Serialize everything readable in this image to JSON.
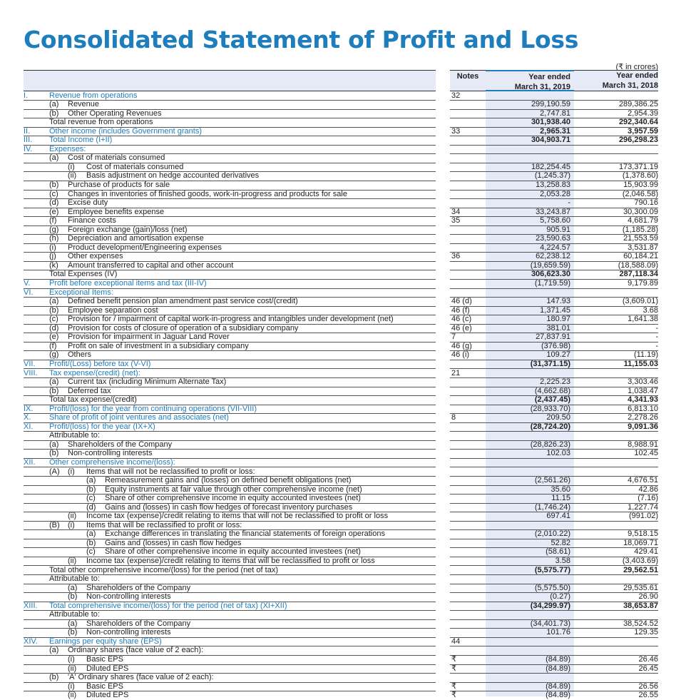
{
  "page": {
    "title": "Consolidated Statement of Profit and Loss",
    "unit": "(₹ in crores)"
  },
  "header": {
    "notes": "Notes",
    "col1_line1": "Year ended",
    "col1_line2": "March 31, 2019",
    "col2_line1": "Year ended",
    "col2_line2": "March 31, 2018"
  },
  "colors": {
    "accent": "#1d7dbd",
    "highlight": "#e6eaf6"
  },
  "rows": [
    {
      "rn": "I.",
      "mk": "",
      "mk2": "",
      "label": "Revenue from operations",
      "note": "32",
      "v19": "",
      "v18": "",
      "sec": true,
      "bold": false,
      "ind": 0
    },
    {
      "rn": "",
      "mk": "(a)",
      "mk2": "",
      "label": "Revenue",
      "note": "",
      "v19": "299,190.59",
      "v18": "289,386.25",
      "sec": false,
      "bold": false,
      "ind": 0
    },
    {
      "rn": "",
      "mk": "(b)",
      "mk2": "",
      "label": "Other Operating Revenues",
      "note": "",
      "v19": "2,747.81",
      "v18": "2,954.39",
      "sec": false,
      "bold": false,
      "ind": 0
    },
    {
      "rn": "",
      "mk": "",
      "mk2": "",
      "label": "Total revenue from operations",
      "note": "",
      "v19": "301,938.40",
      "v18": "292,340.64",
      "sec": false,
      "bold": true,
      "ind": 0
    },
    {
      "rn": "II.",
      "mk": "",
      "mk2": "",
      "label": "Other income (includes Government grants)",
      "note": "33",
      "v19": "2,965.31",
      "v18": "3,957.59",
      "sec": true,
      "bold": true,
      "ind": 0
    },
    {
      "rn": "III.",
      "mk": "",
      "mk2": "",
      "label": "Total Income (I+II)",
      "note": "",
      "v19": "304,903.71",
      "v18": "296,298.23",
      "sec": true,
      "bold": true,
      "ind": 0
    },
    {
      "rn": "IV.",
      "mk": "",
      "mk2": "",
      "label": "Expenses:",
      "note": "",
      "v19": "",
      "v18": "",
      "sec": true,
      "bold": false,
      "ind": 0
    },
    {
      "rn": "",
      "mk": "(a)",
      "mk2": "",
      "label": "Cost of materials consumed",
      "note": "",
      "v19": "",
      "v18": "",
      "sec": false,
      "bold": false,
      "ind": 0
    },
    {
      "rn": "",
      "mk": "",
      "mk2": "(i)",
      "label": "Cost of materials consumed",
      "note": "",
      "v19": "182,254.45",
      "v18": "173,371.19",
      "sec": false,
      "bold": false,
      "ind": 1
    },
    {
      "rn": "",
      "mk": "",
      "mk2": "(ii)",
      "label": "Basis adjustment on hedge accounted derivatives",
      "note": "",
      "v19": "(1,245.37)",
      "v18": "(1,378.60)",
      "sec": false,
      "bold": false,
      "ind": 1
    },
    {
      "rn": "",
      "mk": "(b)",
      "mk2": "",
      "label": "Purchase of products for sale",
      "note": "",
      "v19": "13,258.83",
      "v18": "15,903.99",
      "sec": false,
      "bold": false,
      "ind": 0
    },
    {
      "rn": "",
      "mk": "(c)",
      "mk2": "",
      "label": "Changes in inventories of finished goods, work-in-progress and products for sale",
      "note": "",
      "v19": "2,053.28",
      "v18": "(2,046.58)",
      "sec": false,
      "bold": false,
      "ind": 0
    },
    {
      "rn": "",
      "mk": "(d)",
      "mk2": "",
      "label": "Excise duty",
      "note": "",
      "v19": "-",
      "v18": "790.16",
      "sec": false,
      "bold": false,
      "ind": 0
    },
    {
      "rn": "",
      "mk": "(e)",
      "mk2": "",
      "label": "Employee benefits expense",
      "note": "34",
      "v19": "33,243.87",
      "v18": "30,300.09",
      "sec": false,
      "bold": false,
      "ind": 0
    },
    {
      "rn": "",
      "mk": "(f)",
      "mk2": "",
      "label": "Finance costs",
      "note": "35",
      "v19": "5,758.60",
      "v18": "4,681.79",
      "sec": false,
      "bold": false,
      "ind": 0
    },
    {
      "rn": "",
      "mk": "(g)",
      "mk2": "",
      "label": "Foreign exchange  (gain)/loss (net)",
      "note": "",
      "v19": "905.91",
      "v18": "(1,185.28)",
      "sec": false,
      "bold": false,
      "ind": 0
    },
    {
      "rn": "",
      "mk": "(h)",
      "mk2": "",
      "label": "Depreciation and amortisation expense",
      "note": "",
      "v19": "23,590.63",
      "v18": "21,553.59",
      "sec": false,
      "bold": false,
      "ind": 0
    },
    {
      "rn": "",
      "mk": "(i)",
      "mk2": "",
      "label": "Product development/Engineering expenses",
      "note": "",
      "v19": "4,224.57",
      "v18": "3,531.87",
      "sec": false,
      "bold": false,
      "ind": 0
    },
    {
      "rn": "",
      "mk": "(j)",
      "mk2": "",
      "label": "Other expenses",
      "note": "36",
      "v19": "62,238.12",
      "v18": "60,184.21",
      "sec": false,
      "bold": false,
      "ind": 0
    },
    {
      "rn": "",
      "mk": "(k)",
      "mk2": "",
      "label": "Amount transferred to capital and other account",
      "note": "",
      "v19": "(19,659.59)",
      "v18": "(18,588.09)",
      "sec": false,
      "bold": false,
      "ind": 0
    },
    {
      "rn": "",
      "mk": "",
      "mk2": "",
      "label": "Total Expenses (IV)",
      "note": "",
      "v19": "306,623.30",
      "v18": "287,118.34",
      "sec": false,
      "bold": true,
      "ind": 0
    },
    {
      "rn": "V.",
      "mk": "",
      "mk2": "",
      "label": "Profit before exceptional items and tax (III-IV)",
      "note": "",
      "v19": "(1,719.59)",
      "v18": "9,179.89",
      "sec": true,
      "bold": false,
      "ind": 0
    },
    {
      "rn": "VI.",
      "mk": "",
      "mk2": "",
      "label": "Exceptional Items:",
      "note": "",
      "v19": "",
      "v18": "",
      "sec": true,
      "bold": false,
      "ind": 0
    },
    {
      "rn": "",
      "mk": "(a)",
      "mk2": "",
      "label": "Defined benefit pension plan amendment past service cost/(credit)",
      "note": "46 (d)",
      "v19": "147.93",
      "v18": "(3,609.01)",
      "sec": false,
      "bold": false,
      "ind": 0
    },
    {
      "rn": "",
      "mk": "(b)",
      "mk2": "",
      "label": "Employee separation cost",
      "note": "46 (f)",
      "v19": "1,371.45",
      "v18": "3.68",
      "sec": false,
      "bold": false,
      "ind": 0
    },
    {
      "rn": "",
      "mk": "(c)",
      "mk2": "",
      "label": "Provision for / impairment of capital work-in-progress and intangibles under development (net)",
      "note": "46 (c)",
      "v19": "180.97",
      "v18": "1,641.38",
      "sec": false,
      "bold": false,
      "ind": 0
    },
    {
      "rn": "",
      "mk": "(d)",
      "mk2": "",
      "label": "Provision for costs of closure of operation of a subsidiary company",
      "note": "46 (e)",
      "v19": "381.01",
      "v18": "-",
      "sec": false,
      "bold": false,
      "ind": 0
    },
    {
      "rn": "",
      "mk": "(e)",
      "mk2": "",
      "label": "Provision for impairment in Jaguar Land Rover",
      "note": "7",
      "v19": "27,837.91",
      "v18": "-",
      "sec": false,
      "bold": false,
      "ind": 0
    },
    {
      "rn": "",
      "mk": "(f)",
      "mk2": "",
      "label": "Profit on sale of investment in a subsidiary company",
      "note": "46 (g)",
      "v19": "(376.98)",
      "v18": "-",
      "sec": false,
      "bold": false,
      "ind": 0
    },
    {
      "rn": "",
      "mk": "(g)",
      "mk2": "",
      "label": "Others",
      "note": "46 (i)",
      "v19": "109.27",
      "v18": "(11.19)",
      "sec": false,
      "bold": false,
      "ind": 0
    },
    {
      "rn": "VII.",
      "mk": "",
      "mk2": "",
      "label": "Profit/(Loss) before tax (V-VI)",
      "note": "",
      "v19": "(31,371.15)",
      "v18": "11,155.03",
      "sec": true,
      "bold": true,
      "ind": 0
    },
    {
      "rn": "VIII.",
      "mk": "",
      "mk2": "",
      "label": "Tax expense/(credit) (net):",
      "note": "21",
      "v19": "",
      "v18": "",
      "sec": true,
      "bold": false,
      "ind": 0
    },
    {
      "rn": "",
      "mk": "(a)",
      "mk2": "",
      "label": "Current tax (including Minimum Alternate Tax)",
      "note": "",
      "v19": "2,225.23",
      "v18": "3,303.46",
      "sec": false,
      "bold": false,
      "ind": 0
    },
    {
      "rn": "",
      "mk": "(b)",
      "mk2": "",
      "label": "Deferred tax",
      "note": "",
      "v19": "(4,662.68)",
      "v18": "1,038.47",
      "sec": false,
      "bold": false,
      "ind": 0
    },
    {
      "rn": "",
      "mk": "",
      "mk2": "",
      "label": "Total tax expense/(credit)",
      "note": "",
      "v19": "(2,437.45)",
      "v18": "4,341.93",
      "sec": false,
      "bold": true,
      "ind": 0
    },
    {
      "rn": "IX.",
      "mk": "",
      "mk2": "",
      "label": "Profit/(loss) for the year from continuing operations (VII-VIII)",
      "note": "",
      "v19": "(28,933.70)",
      "v18": "6,813.10",
      "sec": true,
      "bold": false,
      "ind": 0
    },
    {
      "rn": "X.",
      "mk": "",
      "mk2": "",
      "label": "Share of profit of joint ventures and associates (net)",
      "note": "8",
      "v19": "209.50",
      "v18": "2,278.26",
      "sec": true,
      "bold": false,
      "ind": 0
    },
    {
      "rn": "XI.",
      "mk": "",
      "mk2": "",
      "label": "Profit/(loss) for the year (IX+X)",
      "note": "",
      "v19": "(28,724.20)",
      "v18": "9,091.36",
      "sec": true,
      "bold": true,
      "ind": 0
    },
    {
      "rn": "",
      "mk": "",
      "mk2": "",
      "label": "Attributable to:",
      "note": "",
      "v19": "",
      "v18": "",
      "sec": false,
      "bold": false,
      "ind": 0
    },
    {
      "rn": "",
      "mk": "(a)",
      "mk2": "",
      "label": "Shareholders of the Company",
      "note": "",
      "v19": "(28,826.23)",
      "v18": "8,988.91",
      "sec": false,
      "bold": false,
      "ind": 0
    },
    {
      "rn": "",
      "mk": "(b)",
      "mk2": "",
      "label": "Non-controlling interests",
      "note": "",
      "v19": "102.03",
      "v18": "102.45",
      "sec": false,
      "bold": false,
      "ind": 0
    },
    {
      "rn": "XII.",
      "mk": "",
      "mk2": "",
      "label": "Other comprehensive income/(loss):",
      "note": "",
      "v19": "",
      "v18": "",
      "sec": true,
      "bold": false,
      "ind": 0
    },
    {
      "rn": "",
      "mk": "(A)",
      "mk2": "(i)",
      "label": "Items that will not be reclassified to profit or loss:",
      "note": "",
      "v19": "",
      "v18": "",
      "sec": false,
      "bold": false,
      "ind": 0
    },
    {
      "rn": "",
      "mk": "",
      "mk2": "(a)",
      "label": "Remeasurement gains and (losses) on defined benefit obligations (net)",
      "note": "",
      "v19": "(2,561.26)",
      "v18": "4,676.51",
      "sec": false,
      "bold": false,
      "ind": 2
    },
    {
      "rn": "",
      "mk": "",
      "mk2": "(b)",
      "label": "Equity instruments at fair value through other comprehensive income (net)",
      "note": "",
      "v19": "35.60",
      "v18": "42.86",
      "sec": false,
      "bold": false,
      "ind": 2
    },
    {
      "rn": "",
      "mk": "",
      "mk2": "(c)",
      "label": "Share of other comprehensive income in equity accounted investees (net)",
      "note": "",
      "v19": "11.15",
      "v18": "(7.16)",
      "sec": false,
      "bold": false,
      "ind": 2
    },
    {
      "rn": "",
      "mk": "",
      "mk2": "(d)",
      "label": "Gains and (losses) in cash flow hedges of forecast inventory purchases",
      "note": "",
      "v19": "(1,746.24)",
      "v18": "1,227.74",
      "sec": false,
      "bold": false,
      "ind": 2
    },
    {
      "rn": "",
      "mk": "",
      "mk2": "(ii)",
      "label": "Income tax (expense)/credit relating to items that will not be reclassified to profit or loss",
      "note": "",
      "v19": "697.41",
      "v18": "(991.02)",
      "sec": false,
      "bold": false,
      "ind": 1
    },
    {
      "rn": "",
      "mk": "(B)",
      "mk2": "(i)",
      "label": "Items that will be reclassified to profit or loss:",
      "note": "",
      "v19": "",
      "v18": "",
      "sec": false,
      "bold": false,
      "ind": 0
    },
    {
      "rn": "",
      "mk": "",
      "mk2": "(a)",
      "label": "Exchange differences in translating the financial statements of foreign operations",
      "note": "",
      "v19": "(2,010.22)",
      "v18": "9,518.15",
      "sec": false,
      "bold": false,
      "ind": 2
    },
    {
      "rn": "",
      "mk": "",
      "mk2": "(b)",
      "label": "Gains and (losses) in cash flow hedges",
      "note": "",
      "v19": "52.82",
      "v18": "18,069.71",
      "sec": false,
      "bold": false,
      "ind": 2
    },
    {
      "rn": "",
      "mk": "",
      "mk2": "(c)",
      "label": "Share of other comprehensive income in equity accounted investees (net)",
      "note": "",
      "v19": "(58.61)",
      "v18": "429.41",
      "sec": false,
      "bold": false,
      "ind": 2
    },
    {
      "rn": "",
      "mk": "",
      "mk2": "(ii)",
      "label": "Income tax (expense)/credit relating to items that will be reclassified to profit or loss",
      "note": "",
      "v19": "3.58",
      "v18": "(3,403.69)",
      "sec": false,
      "bold": false,
      "ind": 1
    },
    {
      "rn": "",
      "mk": "",
      "mk2": "",
      "label": "Total other comprehensive income/(loss) for the period (net of tax)",
      "note": "",
      "v19": "(5,575.77)",
      "v18": "29,562.51",
      "sec": false,
      "bold": true,
      "ind": 0
    },
    {
      "rn": "",
      "mk": "",
      "mk2": "",
      "label": "Attributable to:",
      "note": "",
      "v19": "",
      "v18": "",
      "sec": false,
      "bold": false,
      "ind": 0
    },
    {
      "rn": "",
      "mk": "",
      "mk2": "(a)",
      "label": "Shareholders of the Company",
      "note": "",
      "v19": "(5,575.50)",
      "v18": "29,535.61",
      "sec": false,
      "bold": false,
      "ind": 1
    },
    {
      "rn": "",
      "mk": "",
      "mk2": "(b)",
      "label": "Non-controlling interests",
      "note": "",
      "v19": "(0.27)",
      "v18": "26.90",
      "sec": false,
      "bold": false,
      "ind": 1
    },
    {
      "rn": "XIII.",
      "mk": "",
      "mk2": "",
      "label": "Total comprehensive income/(loss) for the period (net of tax) (XI+XII)",
      "note": "",
      "v19": "(34,299.97)",
      "v18": "38,653.87",
      "sec": true,
      "bold": true,
      "ind": 0
    },
    {
      "rn": "",
      "mk": "",
      "mk2": "",
      "label": "Attributable to:",
      "note": "",
      "v19": "",
      "v18": "",
      "sec": false,
      "bold": false,
      "ind": 0
    },
    {
      "rn": "",
      "mk": "",
      "mk2": "(a)",
      "label": "Shareholders of the Company",
      "note": "",
      "v19": "(34,401.73)",
      "v18": "38,524.52",
      "sec": false,
      "bold": false,
      "ind": 1
    },
    {
      "rn": "",
      "mk": "",
      "mk2": "(b)",
      "label": "Non-controlling interests",
      "note": "",
      "v19": "101.76",
      "v18": "129.35",
      "sec": false,
      "bold": false,
      "ind": 1
    },
    {
      "rn": "XIV.",
      "mk": "",
      "mk2": "",
      "label": "Earnings per equity share (EPS)",
      "note": "44",
      "v19": "",
      "v18": "",
      "sec": true,
      "bold": false,
      "ind": 0
    },
    {
      "rn": "",
      "mk": "(a)",
      "mk2": "",
      "label": "Ordinary shares (face value of  2 each):",
      "note": "",
      "v19": "",
      "v18": "",
      "sec": false,
      "bold": false,
      "ind": 0
    },
    {
      "rn": "",
      "mk": "",
      "mk2": "(i)",
      "label": "Basic EPS",
      "note": "₹",
      "v19": "(84.89)",
      "v18": "26.46",
      "sec": false,
      "bold": false,
      "ind": 1
    },
    {
      "rn": "",
      "mk": "",
      "mk2": "(ii)",
      "label": "Diluted EPS",
      "note": "₹",
      "v19": "(84.89)",
      "v18": "26.45",
      "sec": false,
      "bold": false,
      "ind": 1
    },
    {
      "rn": "",
      "mk": "(b)",
      "mk2": "",
      "label": "'A' Ordinary shares (face value of  2 each):",
      "note": "",
      "v19": "",
      "v18": "",
      "sec": false,
      "bold": false,
      "ind": 0
    },
    {
      "rn": "",
      "mk": "",
      "mk2": "(i)",
      "label": "Basic EPS",
      "note": "₹",
      "v19": "(84.89)",
      "v18": "26.56",
      "sec": false,
      "bold": false,
      "ind": 1
    },
    {
      "rn": "",
      "mk": "",
      "mk2": "(ii)",
      "label": "Diluted EPS",
      "note": "₹",
      "v19": "(84.89)",
      "v18": "26.55",
      "sec": false,
      "bold": false,
      "ind": 1
    }
  ]
}
